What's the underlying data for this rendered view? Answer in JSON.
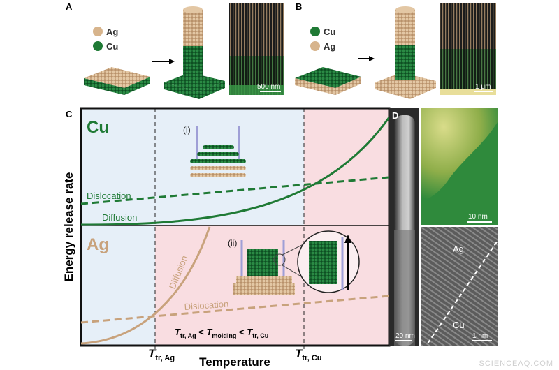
{
  "panel_a": {
    "label": "A",
    "legend": [
      "Ag",
      "Cu"
    ],
    "scale_bar": "500 nm"
  },
  "panel_b": {
    "label": "B",
    "legend": [
      "Cu",
      "Ag"
    ],
    "scale_bar": "1 μm"
  },
  "panel_c": {
    "label": "C",
    "top": {
      "metal": "Cu",
      "inset": "(i)",
      "dislocation": "Dislocation",
      "diffusion": "Diffusion"
    },
    "bottom": {
      "metal": "Ag",
      "inset": "(ii)",
      "diffusion": "Diffusion",
      "dislocation": "Dislocation"
    },
    "condition": [
      {
        "base": "T",
        "sub": "tr, Ag"
      },
      "<",
      {
        "base": "T",
        "sub": "molding"
      },
      "<",
      {
        "base": "T",
        "sub": "tr, Cu"
      }
    ],
    "y_axis": "Energy release rate",
    "x_axis": "Temperature",
    "x_marks": [
      {
        "base": "T",
        "sub": "tr, Ag"
      },
      {
        "base": "T",
        "sub": "tr, Cu"
      }
    ]
  },
  "panel_d": {
    "label": "D",
    "scale_bars": [
      "20 nm",
      "10 nm",
      "1 nm"
    ],
    "regions": [
      "Ag",
      "Cu"
    ]
  },
  "watermark": "SCIENCEAQ.COM"
}
